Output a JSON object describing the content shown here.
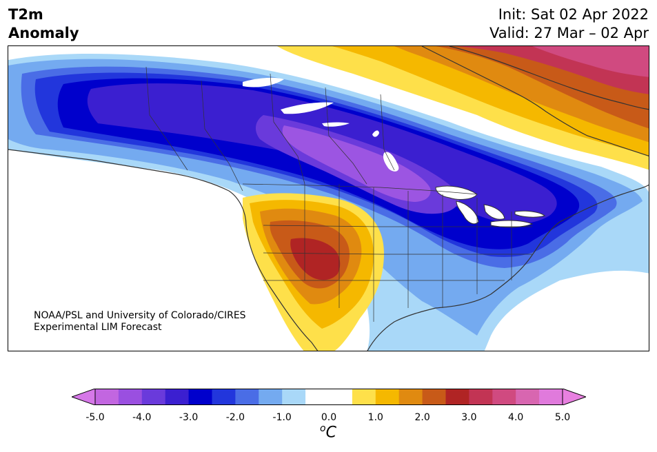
{
  "header": {
    "title_line1": "T2m",
    "title_line2": "Anomaly",
    "init": "Init: Sat 02 Apr 2022",
    "valid": "Valid: 27 Mar – 02 Apr"
  },
  "credit": {
    "line1": "NOAA/PSL and University of Colorado/CIRES",
    "line2": "Experimental LIM Forecast"
  },
  "colorbar": {
    "unit_prefix": "o",
    "unit_main": "C",
    "ticks": [
      "-5.0",
      "-4.0",
      "-3.0",
      "-2.0",
      "-1.0",
      "0.0",
      "1.0",
      "2.0",
      "3.0",
      "4.0",
      "5.0"
    ],
    "colors": [
      "#c266e0",
      "#9a4fe0",
      "#6a3adb",
      "#3b1fd0",
      "#0000cc",
      "#2236dc",
      "#4a6de6",
      "#74aaf0",
      "#a9d8f8",
      "#ffffff",
      "#ffffff",
      "#fee04a",
      "#f5b800",
      "#e08a10",
      "#c85a18",
      "#b02424",
      "#c23454",
      "#d04a80",
      "#d866b0",
      "#e07adc"
    ],
    "under_color": "#d678e8",
    "over_color": "#e880e0"
  },
  "map": {
    "anomaly_colors": {
      "cold_5": "#9c55e2",
      "cold_4": "#6a3adb",
      "cold_3": "#3b1fd0",
      "cold_2_5": "#0000cc",
      "cold_2": "#2236dc",
      "cold_1_5": "#4a6de6",
      "cold_1": "#74aaf0",
      "cold_0_5": "#a9d8f8",
      "warm_0_5": "#fee04a",
      "warm_1": "#f5b800",
      "warm_1_5": "#e08a10",
      "warm_2": "#c85a18",
      "warm_2_5": "#b02424",
      "warm_3": "#c23454",
      "warm_3_5": "#d04a80"
    }
  }
}
